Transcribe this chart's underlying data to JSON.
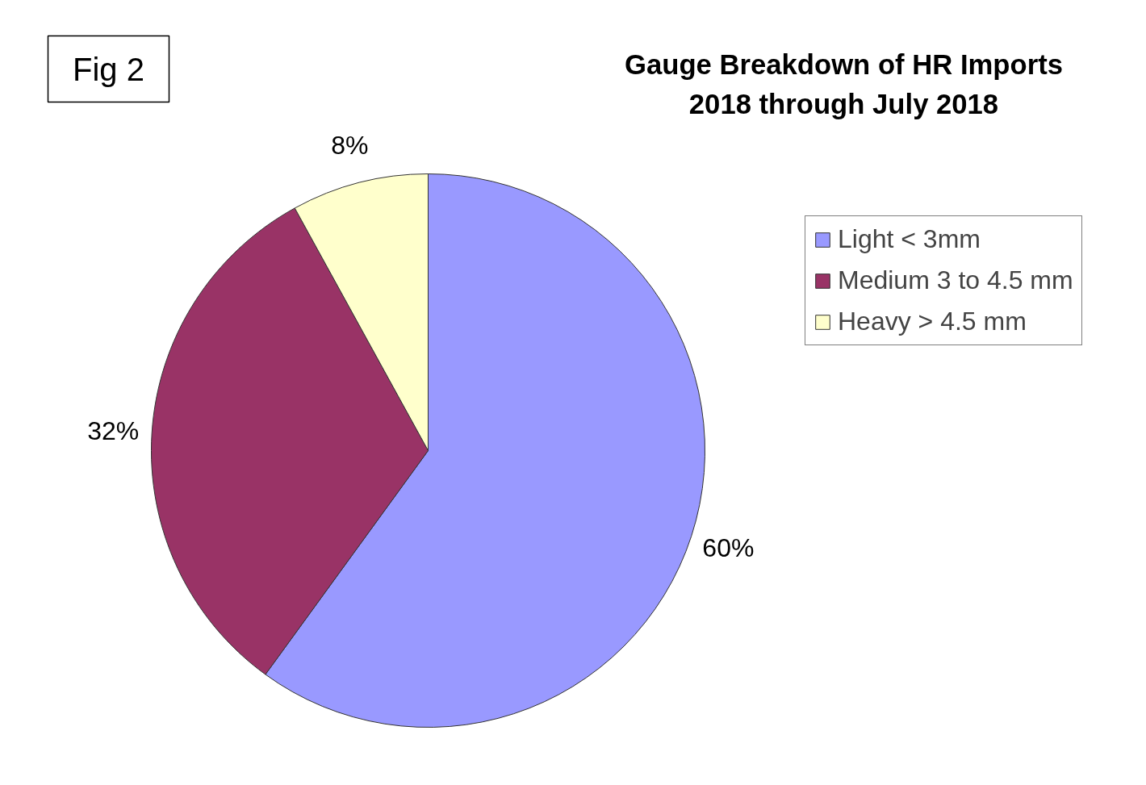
{
  "chart_data": {
    "type": "pie",
    "title": "Gauge Breakdown of HR Imports\n2018 through July 2018",
    "categories": [
      "Light < 3mm",
      "Medium 3 to 4.5 mm",
      "Heavy > 4.5 mm"
    ],
    "values": [
      60,
      32,
      8
    ],
    "colors": [
      "#9999ff",
      "#993366",
      "#ffffcc"
    ],
    "value_labels": [
      "60%",
      "32%",
      "8%"
    ],
    "legend": "right",
    "annotations": [
      "Fig 2"
    ]
  }
}
